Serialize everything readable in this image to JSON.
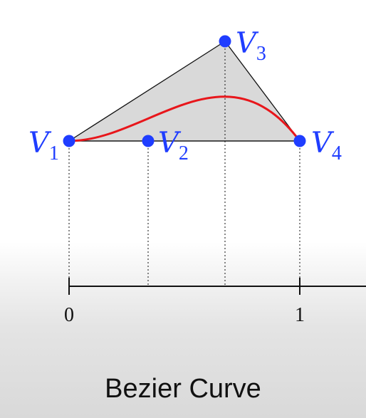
{
  "figure": {
    "caption": "Bezier Curve",
    "colors": {
      "control_points": "#1f3dff",
      "curve": "#e8161b",
      "hull_fill": "#d9d9d9",
      "hull_stroke": "#111111",
      "axis": "#111111"
    }
  },
  "control_points": [
    {
      "id": "V1",
      "base": "V",
      "sub": "1",
      "t": 0
    },
    {
      "id": "V2",
      "base": "V",
      "sub": "2",
      "t": 0.333
    },
    {
      "id": "V3",
      "base": "V",
      "sub": "3",
      "t": 0.667
    },
    {
      "id": "V4",
      "base": "V",
      "sub": "4",
      "t": 1
    }
  ],
  "axis": {
    "tick_labels": [
      "0",
      "1"
    ],
    "range": [
      0,
      1
    ]
  }
}
